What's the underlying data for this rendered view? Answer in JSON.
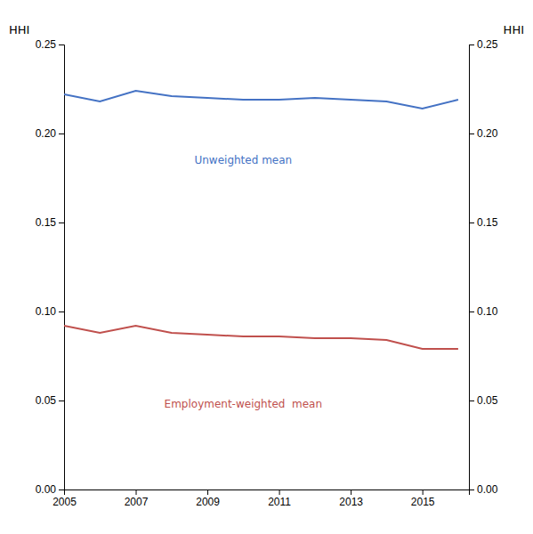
{
  "chart_data": {
    "type": "line",
    "x": [
      2005,
      2006,
      2007,
      2008,
      2009,
      2010,
      2011,
      2012,
      2013,
      2014,
      2015,
      2016
    ],
    "series": [
      {
        "color": "#4472C4",
        "values": [
          0.222,
          0.218,
          0.224,
          0.221,
          0.22,
          0.219,
          0.219,
          0.22,
          0.219,
          0.218,
          0.214,
          0.219
        ]
      },
      {
        "color": "#C0504D",
        "values": [
          0.092,
          0.088,
          0.092,
          0.088,
          0.087,
          0.086,
          0.086,
          0.085,
          0.085,
          0.084,
          0.079,
          0.079
        ]
      }
    ],
    "annotations": [
      {
        "text": "Unweighted mean",
        "x": 2010.0,
        "y": 0.185,
        "color": "#4472C4"
      },
      {
        "text": "Employment-weighted  mean",
        "x": 2010.0,
        "y": 0.048,
        "color": "#C0504D"
      }
    ],
    "y_label": "HHI",
    "y2_label": "HHI",
    "xlim": [
      2005,
      2016.3
    ],
    "xticks": [
      2005,
      2007,
      2009,
      2011,
      2013,
      2015
    ],
    "ylim": [
      0.0,
      0.25
    ],
    "yticks": [
      {
        "value": 0.0,
        "label": "0.00"
      },
      0.05,
      {
        "value": 0.1,
        "label": "0.10"
      },
      0.15,
      {
        "value": 0.2,
        "label": "0.20"
      },
      0.25
    ],
    "y2lim": [
      0.0,
      0.25
    ],
    "y2ticks": [
      {
        "value": 0.0,
        "label": "0.00"
      },
      0.05,
      {
        "value": 0.1,
        "label": "0.10"
      },
      0.15,
      {
        "value": 0.2,
        "label": "0.20"
      },
      0.25
    ],
    "grid": false
  }
}
